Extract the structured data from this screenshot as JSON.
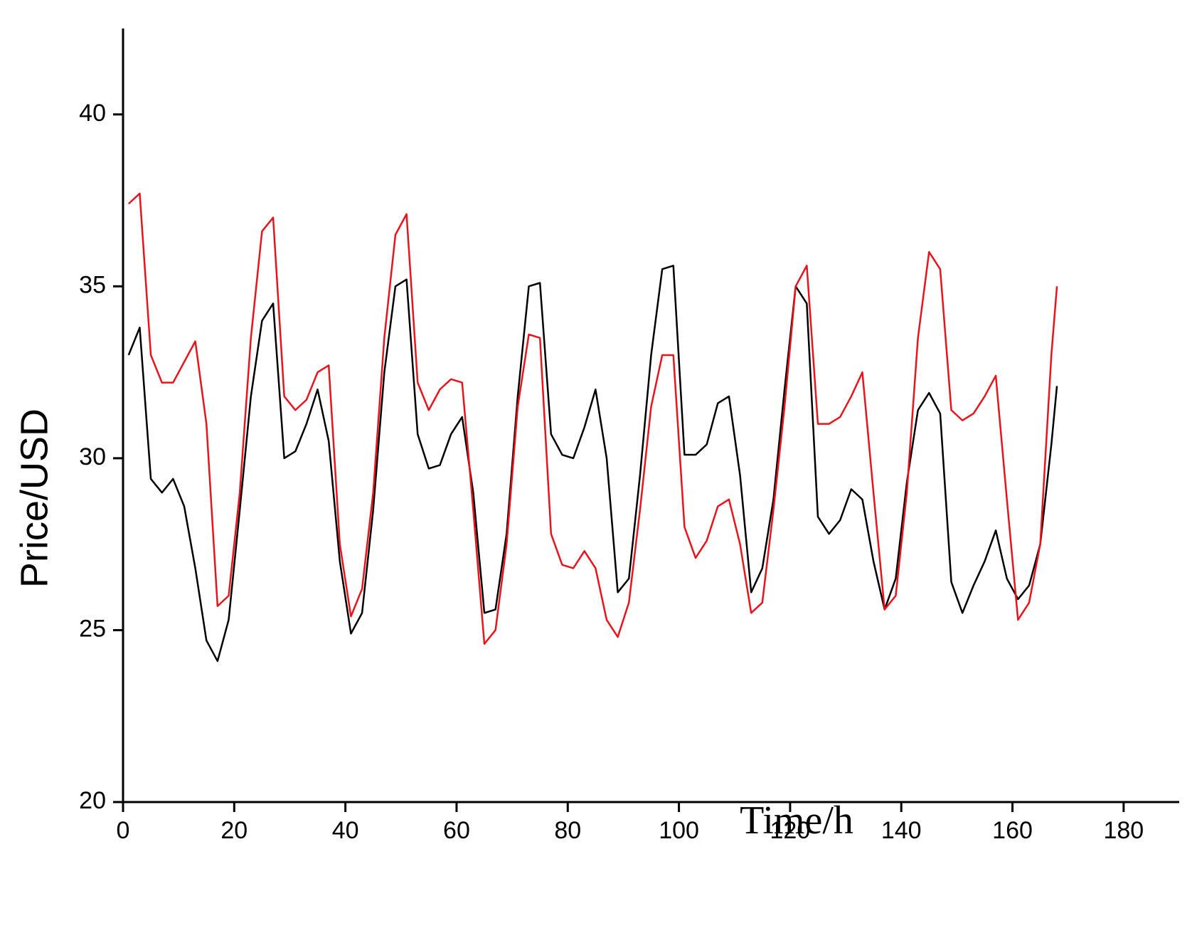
{
  "chart_data": {
    "type": "line",
    "xlabel": "Time/h",
    "ylabel": "Price/USD",
    "x": [
      1,
      3,
      5,
      7,
      9,
      11,
      13,
      15,
      17,
      19,
      21,
      23,
      25,
      27,
      29,
      31,
      33,
      35,
      37,
      39,
      41,
      43,
      45,
      47,
      49,
      51,
      53,
      55,
      57,
      59,
      61,
      63,
      65,
      67,
      69,
      71,
      73,
      75,
      77,
      79,
      81,
      83,
      85,
      87,
      89,
      91,
      93,
      95,
      97,
      99,
      101,
      103,
      105,
      107,
      109,
      111,
      113,
      115,
      117,
      119,
      121,
      123,
      125,
      127,
      129,
      131,
      133,
      135,
      137,
      139,
      141,
      143,
      145,
      147,
      149,
      151,
      153,
      155,
      157,
      159,
      161,
      163,
      165,
      167,
      168
    ],
    "series": [
      {
        "color": "#000000",
        "values": [
          33.0,
          33.8,
          29.4,
          29.0,
          29.4,
          28.6,
          26.8,
          24.7,
          24.1,
          25.3,
          28.5,
          31.8,
          34.0,
          34.5,
          30.0,
          30.2,
          31.0,
          32.0,
          30.5,
          27.0,
          24.9,
          25.5,
          28.5,
          32.5,
          35.0,
          35.2,
          30.7,
          29.7,
          29.8,
          30.7,
          31.2,
          29.0,
          25.5,
          25.6,
          27.8,
          31.8,
          35.0,
          35.1,
          30.7,
          30.1,
          30.0,
          30.9,
          32.0,
          30.0,
          26.1,
          26.5,
          29.5,
          33.0,
          35.5,
          35.6,
          30.1,
          30.1,
          30.4,
          31.6,
          31.8,
          29.5,
          26.1,
          26.8,
          28.8,
          32.0,
          35.0,
          34.5,
          28.3,
          27.8,
          28.2,
          29.1,
          28.8,
          27.0,
          25.6,
          26.5,
          29.3,
          31.4,
          31.9,
          31.3,
          26.4,
          25.5,
          26.3,
          27.0,
          27.9,
          26.5,
          25.9,
          26.3,
          27.5,
          30.4,
          32.1
        ]
      },
      {
        "color": "#e8141c",
        "values": [
          37.4,
          37.7,
          33.0,
          32.2,
          32.2,
          32.8,
          33.4,
          31.0,
          25.7,
          26.0,
          29.0,
          33.5,
          36.6,
          37.0,
          31.8,
          31.4,
          31.7,
          32.5,
          32.7,
          27.5,
          25.4,
          26.2,
          29.0,
          33.5,
          36.5,
          37.1,
          32.2,
          31.4,
          32.0,
          32.3,
          32.2,
          28.5,
          24.6,
          25.0,
          27.5,
          31.5,
          33.6,
          33.5,
          27.8,
          26.9,
          26.8,
          27.3,
          26.8,
          25.3,
          24.8,
          25.8,
          28.5,
          31.5,
          33.0,
          33.0,
          28.0,
          27.1,
          27.6,
          28.6,
          28.8,
          27.5,
          25.5,
          25.8,
          28.5,
          31.5,
          35.0,
          35.6,
          31.0,
          31.0,
          31.2,
          31.8,
          32.5,
          29.0,
          25.6,
          26.0,
          29.0,
          33.5,
          36.0,
          35.5,
          31.4,
          31.1,
          31.3,
          31.8,
          32.4,
          28.8,
          25.3,
          25.8,
          27.5,
          33.0,
          35.0
        ]
      }
    ],
    "xlim": [
      0,
      190
    ],
    "xticks": [
      0,
      20,
      40,
      60,
      80,
      100,
      120,
      140,
      160,
      180
    ],
    "ylim": [
      20,
      42.5
    ],
    "yticks": [
      20,
      25,
      30,
      35,
      40
    ],
    "grid": false
  }
}
